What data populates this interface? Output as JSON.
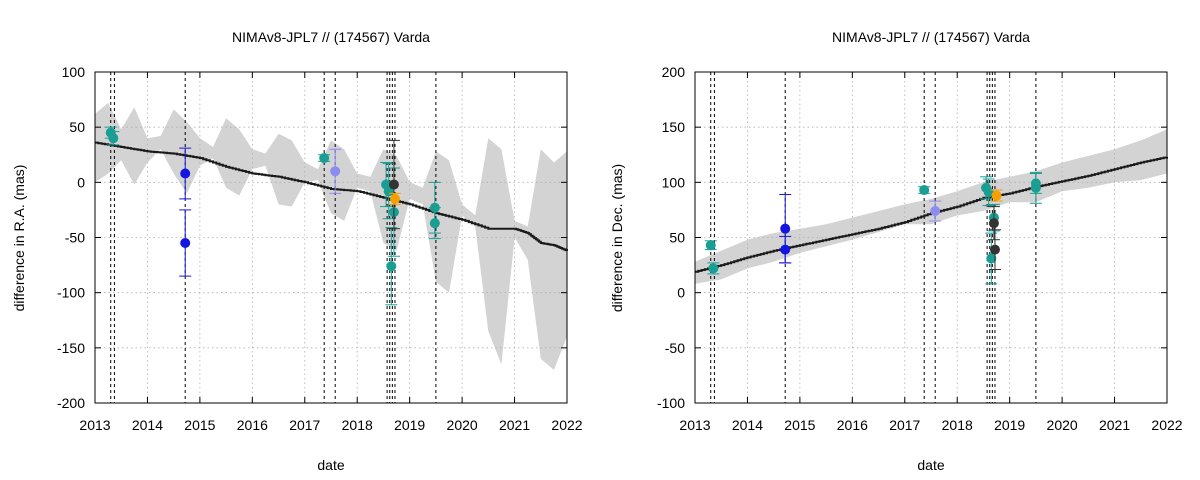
{
  "chart_data": [
    {
      "type": "scatter",
      "title": "NIMAv8-JPL7 // (174567) Varda",
      "xlabel": "date",
      "ylabel": "difference in R.A. (mas)",
      "xlim": [
        2013,
        2022
      ],
      "ylim": [
        -200,
        100
      ],
      "x_ticks": [
        "2013",
        "2014",
        "2015",
        "2016",
        "2017",
        "2018",
        "2019",
        "2020",
        "2021",
        "2022"
      ],
      "y_ticks": [
        "100",
        "50",
        "0",
        "-50",
        "-100",
        "-150",
        "-200"
      ],
      "y_tick_values": [
        100,
        50,
        0,
        -50,
        -100,
        -150,
        -200
      ],
      "grid": true,
      "vertical_markers": [
        2013.3,
        2013.37,
        2014.72,
        2017.37,
        2017.58,
        2018.57,
        2018.62,
        2018.67,
        2018.72,
        2019.5
      ],
      "uncertainty_band": {
        "x": [
          2013.0,
          2013.25,
          2013.5,
          2013.75,
          2014.0,
          2014.25,
          2014.5,
          2014.75,
          2015.0,
          2015.25,
          2015.5,
          2015.75,
          2016.0,
          2016.25,
          2016.5,
          2016.75,
          2017.0,
          2017.25,
          2017.5,
          2017.75,
          2018.0,
          2018.25,
          2018.5,
          2018.75,
          2019.0,
          2019.25,
          2019.5,
          2019.75,
          2020.0,
          2020.25,
          2020.5,
          2020.75,
          2021.0,
          2021.25,
          2021.5,
          2021.75,
          2022.0
        ],
        "lower": [
          0,
          8,
          20,
          -2,
          18,
          30,
          8,
          -10,
          15,
          22,
          -5,
          -12,
          12,
          15,
          -20,
          -22,
          0,
          2,
          -28,
          -35,
          -5,
          -8,
          -55,
          -62,
          -15,
          -20,
          -90,
          -100,
          -30,
          -40,
          -135,
          -165,
          -50,
          -70,
          -160,
          -170,
          -140
        ],
        "upper": [
          62,
          72,
          48,
          68,
          40,
          42,
          66,
          55,
          40,
          32,
          58,
          48,
          30,
          26,
          44,
          38,
          18,
          12,
          38,
          30,
          8,
          5,
          30,
          24,
          0,
          -5,
          28,
          20,
          -20,
          -30,
          40,
          30,
          -35,
          -40,
          30,
          18,
          28
        ]
      },
      "model_curve": {
        "x": [
          2013.0,
          2013.5,
          2014.0,
          2014.5,
          2015.0,
          2015.5,
          2016.0,
          2016.5,
          2017.0,
          2017.5,
          2018.0,
          2018.5,
          2019.0,
          2019.5,
          2020.0,
          2020.5,
          2021.0,
          2021.25,
          2021.5,
          2021.75,
          2022.0
        ],
        "y": [
          36,
          32,
          28,
          26,
          22,
          14,
          8,
          5,
          0,
          -6,
          -8,
          -14,
          -20,
          -28,
          -34,
          -42,
          -42,
          -46,
          -55,
          -57,
          -62
        ]
      },
      "points": [
        {
          "x": 2013.3,
          "y": 45,
          "err": 5,
          "color": "#1a9e94"
        },
        {
          "x": 2013.35,
          "y": 40,
          "err": 6,
          "color": "#1a9e94"
        },
        {
          "x": 2014.72,
          "y": 8,
          "err": 23,
          "color": "#1515e0"
        },
        {
          "x": 2014.72,
          "y": -55,
          "err": 30,
          "color": "#1515e0"
        },
        {
          "x": 2017.37,
          "y": 22,
          "err": 3,
          "color": "#1a9e94"
        },
        {
          "x": 2017.58,
          "y": 10,
          "err": 20,
          "color": "#8c8cf0"
        },
        {
          "x": 2018.55,
          "y": -2,
          "err": 20,
          "color": "#1a9e94"
        },
        {
          "x": 2018.6,
          "y": -8,
          "err": 25,
          "color": "#1a9e94"
        },
        {
          "x": 2018.65,
          "y": -76,
          "err": 35,
          "color": "#1a9e94"
        },
        {
          "x": 2018.7,
          "y": -27,
          "err": 40,
          "color": "#1a9e94"
        },
        {
          "x": 2018.7,
          "y": -2,
          "err": 40,
          "color": "#333333"
        },
        {
          "x": 2018.72,
          "y": -15,
          "err": 5,
          "color": "#f5a000"
        },
        {
          "x": 2019.48,
          "y": -23,
          "err": 23,
          "color": "#1a9e94"
        },
        {
          "x": 2019.48,
          "y": -37,
          "err": 14,
          "color": "#1a9e94"
        }
      ]
    },
    {
      "type": "scatter",
      "title": "NIMAv8-JPL7 // (174567) Varda",
      "xlabel": "date",
      "ylabel": "difference in Dec. (mas)",
      "xlim": [
        2013,
        2022
      ],
      "ylim": [
        -100,
        200
      ],
      "x_ticks": [
        "2013",
        "2014",
        "2015",
        "2016",
        "2017",
        "2018",
        "2019",
        "2020",
        "2021",
        "2022"
      ],
      "y_ticks": [
        "200",
        "150",
        "100",
        "50",
        "0",
        "-50",
        "-100"
      ],
      "y_tick_values": [
        200,
        150,
        100,
        50,
        0,
        -50,
        -100
      ],
      "grid": true,
      "vertical_markers": [
        2013.3,
        2013.37,
        2014.72,
        2017.37,
        2017.58,
        2018.57,
        2018.62,
        2018.67,
        2018.72,
        2019.5
      ],
      "uncertainty_band": {
        "x": [
          2013.0,
          2013.5,
          2014.0,
          2014.5,
          2015.0,
          2015.5,
          2016.0,
          2016.5,
          2017.0,
          2017.5,
          2018.0,
          2018.5,
          2019.0,
          2019.5,
          2020.0,
          2020.5,
          2021.0,
          2021.5,
          2022.0
        ],
        "lower": [
          8,
          12,
          22,
          28,
          36,
          42,
          48,
          55,
          62,
          62,
          70,
          74,
          82,
          82,
          92,
          95,
          100,
          102,
          108
        ],
        "upper": [
          28,
          38,
          48,
          54,
          58,
          62,
          68,
          74,
          80,
          85,
          92,
          100,
          105,
          110,
          118,
          124,
          130,
          138,
          148
        ]
      },
      "model_curve": {
        "x": [
          2013.0,
          2013.5,
          2014.0,
          2014.5,
          2015.0,
          2015.5,
          2016.0,
          2016.5,
          2017.0,
          2017.5,
          2018.0,
          2018.5,
          2019.0,
          2019.5,
          2020.0,
          2020.5,
          2021.0,
          2021.5,
          2022.0
        ],
        "y": [
          19,
          25,
          32,
          38,
          43,
          48,
          53,
          58,
          64,
          72,
          78,
          86,
          90,
          96,
          101,
          106,
          112,
          118,
          123
        ]
      },
      "points": [
        {
          "x": 2013.3,
          "y": 43,
          "err": 4,
          "color": "#1a9e94"
        },
        {
          "x": 2013.35,
          "y": 22,
          "err": 5,
          "color": "#1a9e94"
        },
        {
          "x": 2014.72,
          "y": 58,
          "err": 31,
          "color": "#1515e0"
        },
        {
          "x": 2014.72,
          "y": 39,
          "err": 12,
          "color": "#1515e0"
        },
        {
          "x": 2017.37,
          "y": 93,
          "err": 3,
          "color": "#1a9e94"
        },
        {
          "x": 2017.58,
          "y": 74,
          "err": 9,
          "color": "#8c8cf0"
        },
        {
          "x": 2018.55,
          "y": 95,
          "err": 10,
          "color": "#1a9e94"
        },
        {
          "x": 2018.6,
          "y": 91,
          "err": 12,
          "color": "#1a9e94"
        },
        {
          "x": 2018.65,
          "y": 31,
          "err": 23,
          "color": "#1a9e94"
        },
        {
          "x": 2018.7,
          "y": 68,
          "err": 12,
          "color": "#1a9e94"
        },
        {
          "x": 2018.7,
          "y": 63,
          "err": 15,
          "color": "#333333"
        },
        {
          "x": 2018.72,
          "y": 39,
          "err": 18,
          "color": "#333333"
        },
        {
          "x": 2018.75,
          "y": 88,
          "err": 5,
          "color": "#f5a000"
        },
        {
          "x": 2019.5,
          "y": 99,
          "err": 9,
          "color": "#1a9e94"
        },
        {
          "x": 2019.5,
          "y": 95,
          "err": 14,
          "color": "#1a9e94"
        }
      ]
    }
  ]
}
